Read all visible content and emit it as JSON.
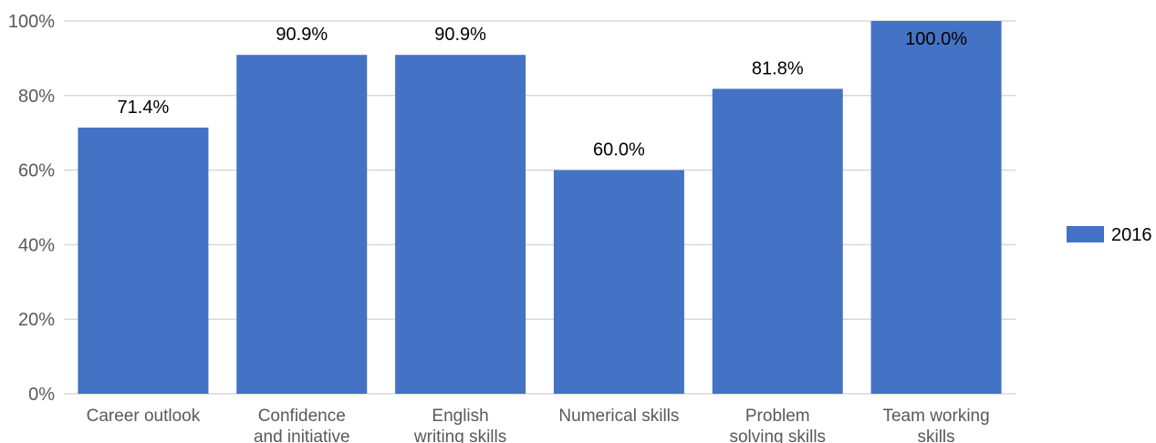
{
  "chart_data": {
    "type": "bar",
    "categories": [
      [
        "Career outlook"
      ],
      [
        "Confidence",
        "and initiative"
      ],
      [
        "English",
        "writing skills"
      ],
      [
        "Numerical skills"
      ],
      [
        "Problem",
        "solving skills"
      ],
      [
        "Team working",
        "skills"
      ]
    ],
    "series": [
      {
        "name": "2016",
        "values": [
          71.4,
          90.9,
          90.9,
          60.0,
          81.8,
          100.0
        ],
        "data_labels": [
          "71.4%",
          "90.9%",
          "90.9%",
          "60.0%",
          "81.8%",
          "100.0%"
        ]
      }
    ],
    "ylim": [
      0,
      100
    ],
    "yticks": [
      "0%",
      "20%",
      "40%",
      "60%",
      "80%",
      "100%"
    ],
    "ytick_values": [
      0,
      20,
      40,
      60,
      80,
      100
    ],
    "grid": true,
    "legend_position": "right",
    "colors": {
      "bar": "#4472c4",
      "grid": "#d9d9d9",
      "axis_text": "#595959",
      "label_text": "#000000"
    }
  }
}
